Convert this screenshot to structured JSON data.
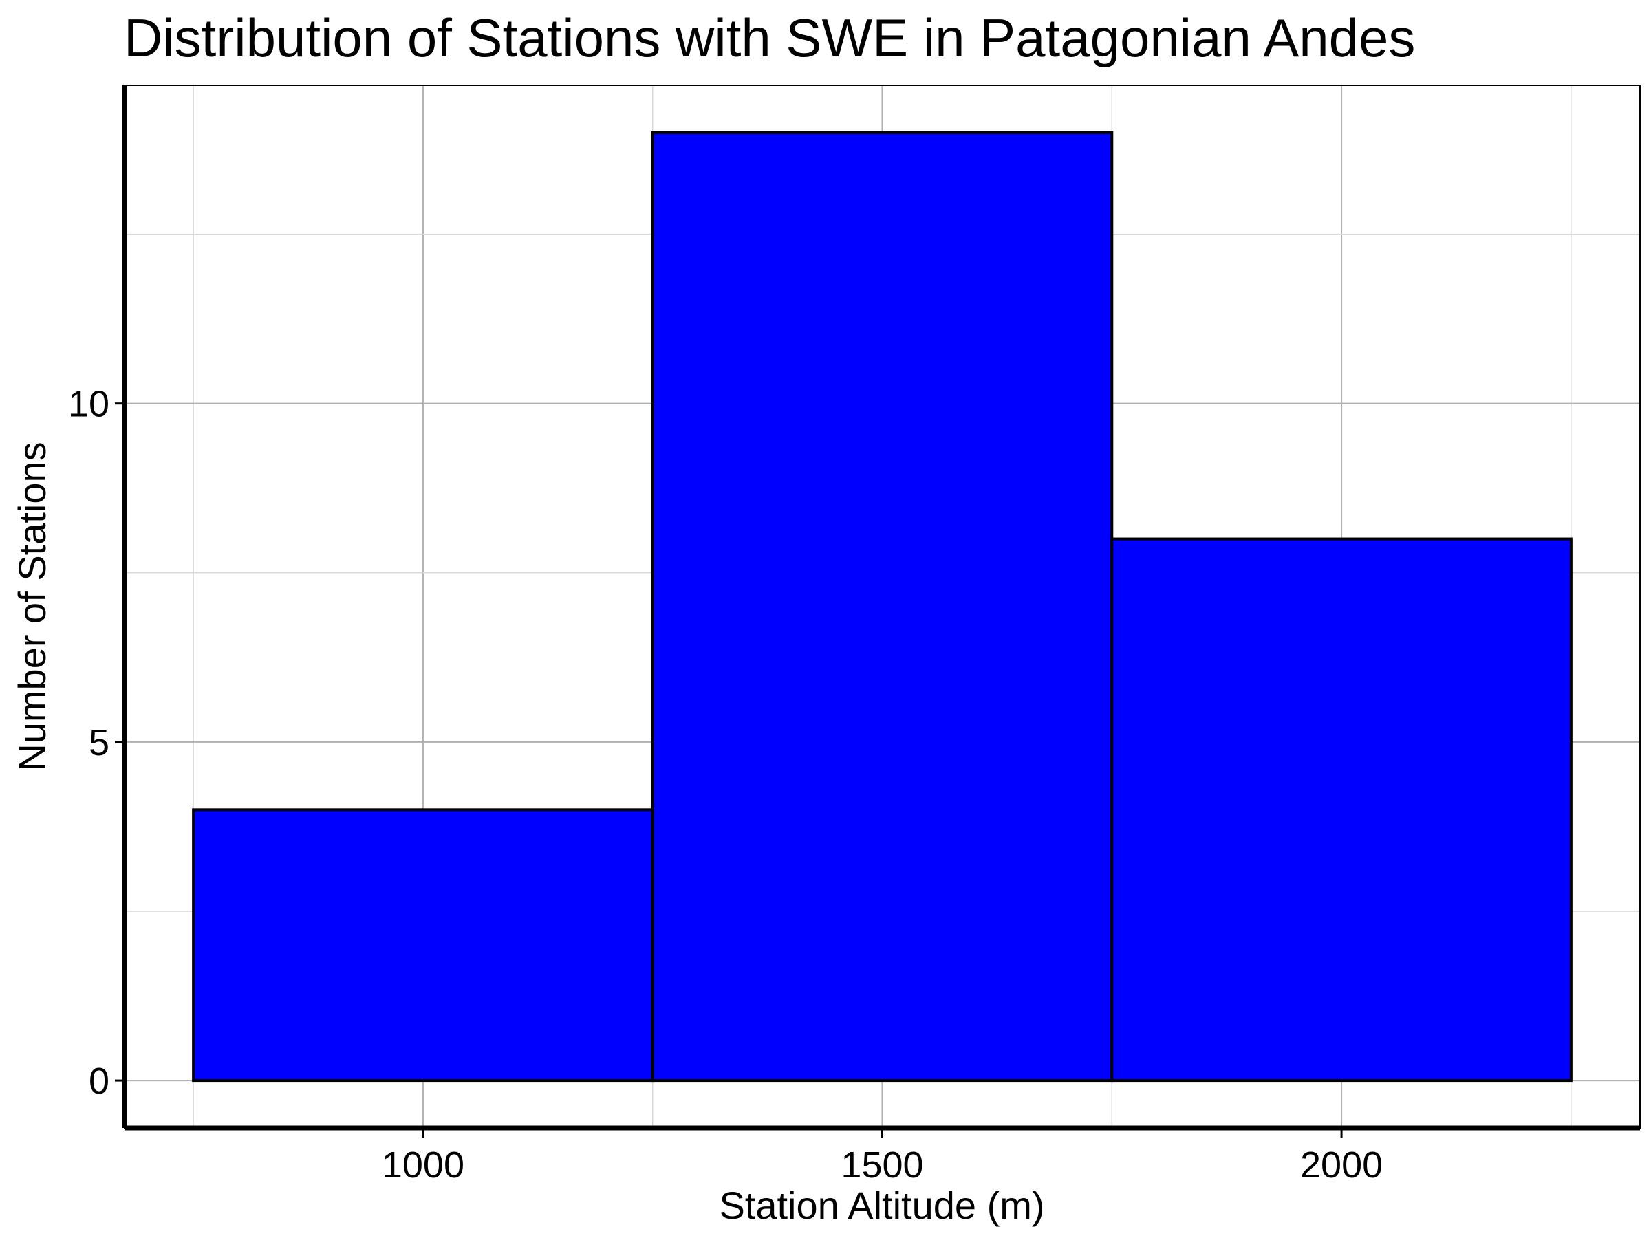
{
  "chart_data": {
    "type": "bar",
    "title": "Distribution of Stations with SWE in Patagonian Andes",
    "xlabel": "Station Altitude (m)",
    "ylabel": "Number of Stations",
    "bins": [
      {
        "x0": 750,
        "x1": 1250,
        "count": 4
      },
      {
        "x0": 1250,
        "x1": 1750,
        "count": 14
      },
      {
        "x0": 1750,
        "x1": 2250,
        "count": 8
      }
    ],
    "xlim": [
      675,
      2325
    ],
    "ylim": [
      -0.7,
      14.7
    ],
    "xticks": [
      1000,
      1500,
      2000
    ],
    "xtick_labels": [
      "1000",
      "1500",
      "2000"
    ],
    "yticks": [
      0,
      5,
      10
    ],
    "ytick_labels": [
      "0",
      "5",
      "10"
    ],
    "bar_color": "#0000ff",
    "grid": true
  }
}
